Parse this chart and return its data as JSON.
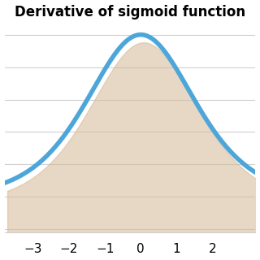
{
  "title": "Derivative of sigmoid function",
  "title_fontsize": 12,
  "title_fontweight": "bold",
  "line_color": "#4da6d9",
  "line_width": 4.0,
  "x_min": -3.8,
  "x_max": 3.2,
  "y_min": -0.055,
  "y_max": 0.265,
  "xticks": [
    -3,
    -2,
    -1,
    0,
    1,
    2
  ],
  "xtick_fontsize": 11,
  "background_color": "#ffffff",
  "grid_color": "#d0d0d0",
  "shadow_color": "#d4b896",
  "shadow_alpha": 0.55
}
